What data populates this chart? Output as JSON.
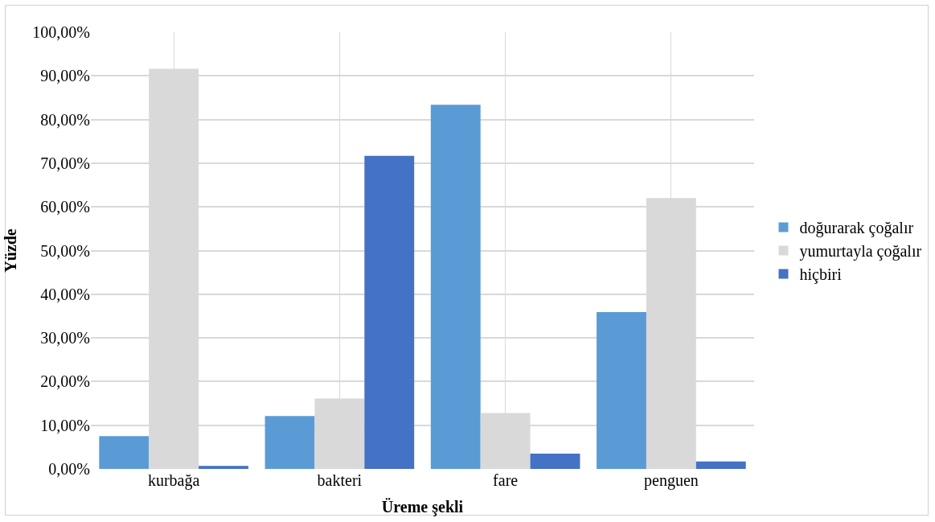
{
  "chart_data": {
    "type": "bar",
    "xlabel": "Üreme şekli",
    "ylabel": "Yüzde",
    "categories": [
      "kurbağa",
      "bakteri",
      "fare",
      "penguen"
    ],
    "series": [
      {
        "name": "doğurarak çoğalır",
        "color": "#5b9bd5",
        "values": [
          7.5,
          12.1,
          83.4,
          35.9
        ]
      },
      {
        "name": "yumurtayla çoğalır",
        "color": "#d9d9d9",
        "values": [
          91.6,
          16.1,
          12.8,
          62.0
        ]
      },
      {
        "name": "hiçbiri",
        "color": "#4472c4",
        "values": [
          0.7,
          71.7,
          3.5,
          1.7
        ]
      }
    ],
    "ylim": [
      0,
      100
    ],
    "yticks": [
      {
        "value": 0,
        "label": "0,00%"
      },
      {
        "value": 10,
        "label": "10,00%"
      },
      {
        "value": 20,
        "label": "20,00%"
      },
      {
        "value": 30,
        "label": "30,00%"
      },
      {
        "value": 40,
        "label": "40,00%"
      },
      {
        "value": 50,
        "label": "50,00%"
      },
      {
        "value": 60,
        "label": "60,00%"
      },
      {
        "value": 70,
        "label": "70,00%"
      },
      {
        "value": 80,
        "label": "80,00%"
      },
      {
        "value": 90,
        "label": "90,00%"
      },
      {
        "value": 100,
        "label": "100,00%"
      }
    ],
    "grid": true,
    "legend": "right"
  }
}
